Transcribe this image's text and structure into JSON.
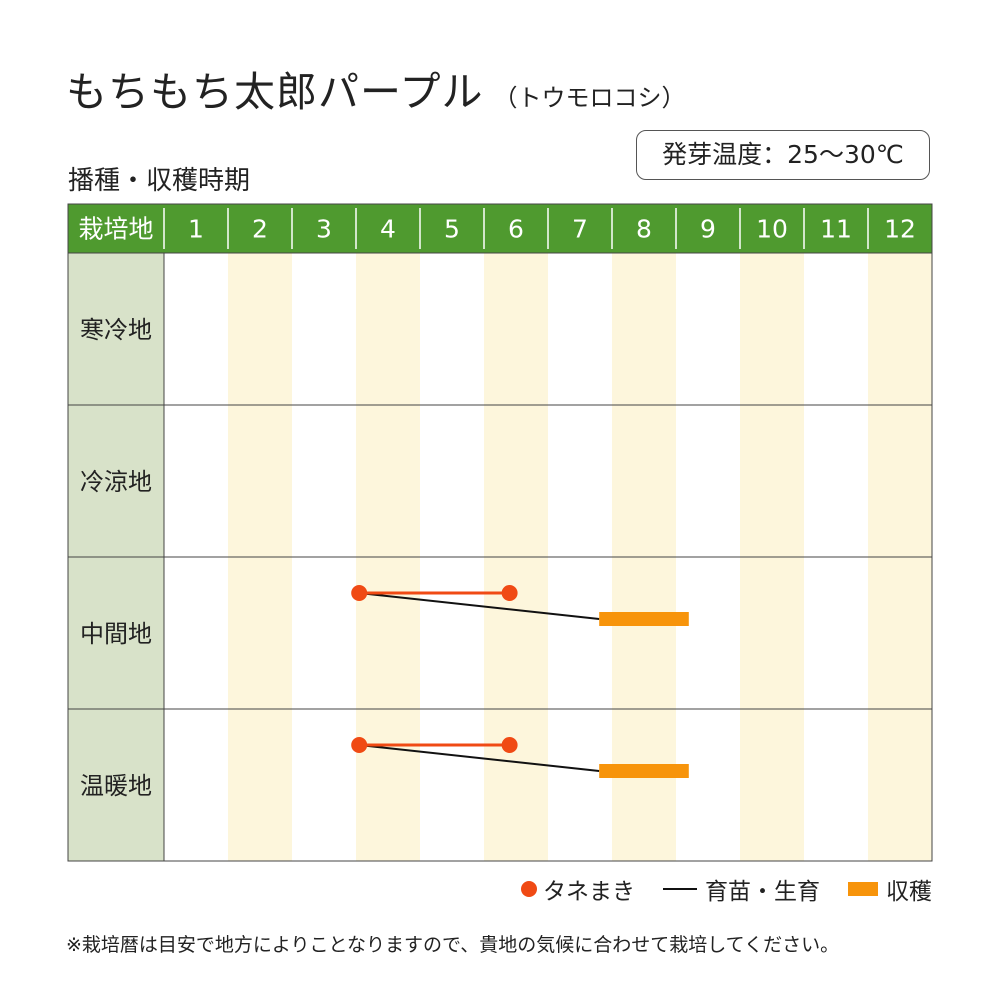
{
  "title": "もちもち太郎パープル",
  "subtitle": "（トウモロコシ）",
  "section_title": "播種・収穫時期",
  "germination_temp": "発芽温度：25～30℃",
  "colors": {
    "header_bg": "#4f9a2f",
    "header_text": "#ffffff",
    "row_label_bg": "#d8e2c9",
    "stripe": "#fdf6dc",
    "grid": "#444444",
    "sowing": "#f04a14",
    "seedling": "#111111",
    "harvest": "#f7940b"
  },
  "chart_data": {
    "type": "gantt",
    "corner_label": "栽培地",
    "months": [
      "1",
      "2",
      "3",
      "4",
      "5",
      "6",
      "7",
      "8",
      "9",
      "10",
      "11",
      "12"
    ],
    "regions": [
      {
        "name": "寒冷地",
        "sowing": null,
        "seedling": null,
        "harvest": null
      },
      {
        "name": "冷涼地",
        "sowing": null,
        "seedling": null,
        "harvest": null
      },
      {
        "name": "中間地",
        "sowing": [
          4.05,
          6.4
        ],
        "seedling": [
          4.05,
          7.8
        ],
        "harvest": [
          7.8,
          9.2
        ]
      },
      {
        "name": "温暖地",
        "sowing": [
          4.05,
          6.4
        ],
        "seedling": [
          4.05,
          7.8
        ],
        "harvest": [
          7.8,
          9.2
        ]
      }
    ]
  },
  "legend": {
    "sowing": "タネまき",
    "seedling": "育苗・生育",
    "harvest": "収穫"
  },
  "note": "※栽培暦は目安で地方によりことなりますので、貴地の気候に合わせて栽培してください。"
}
